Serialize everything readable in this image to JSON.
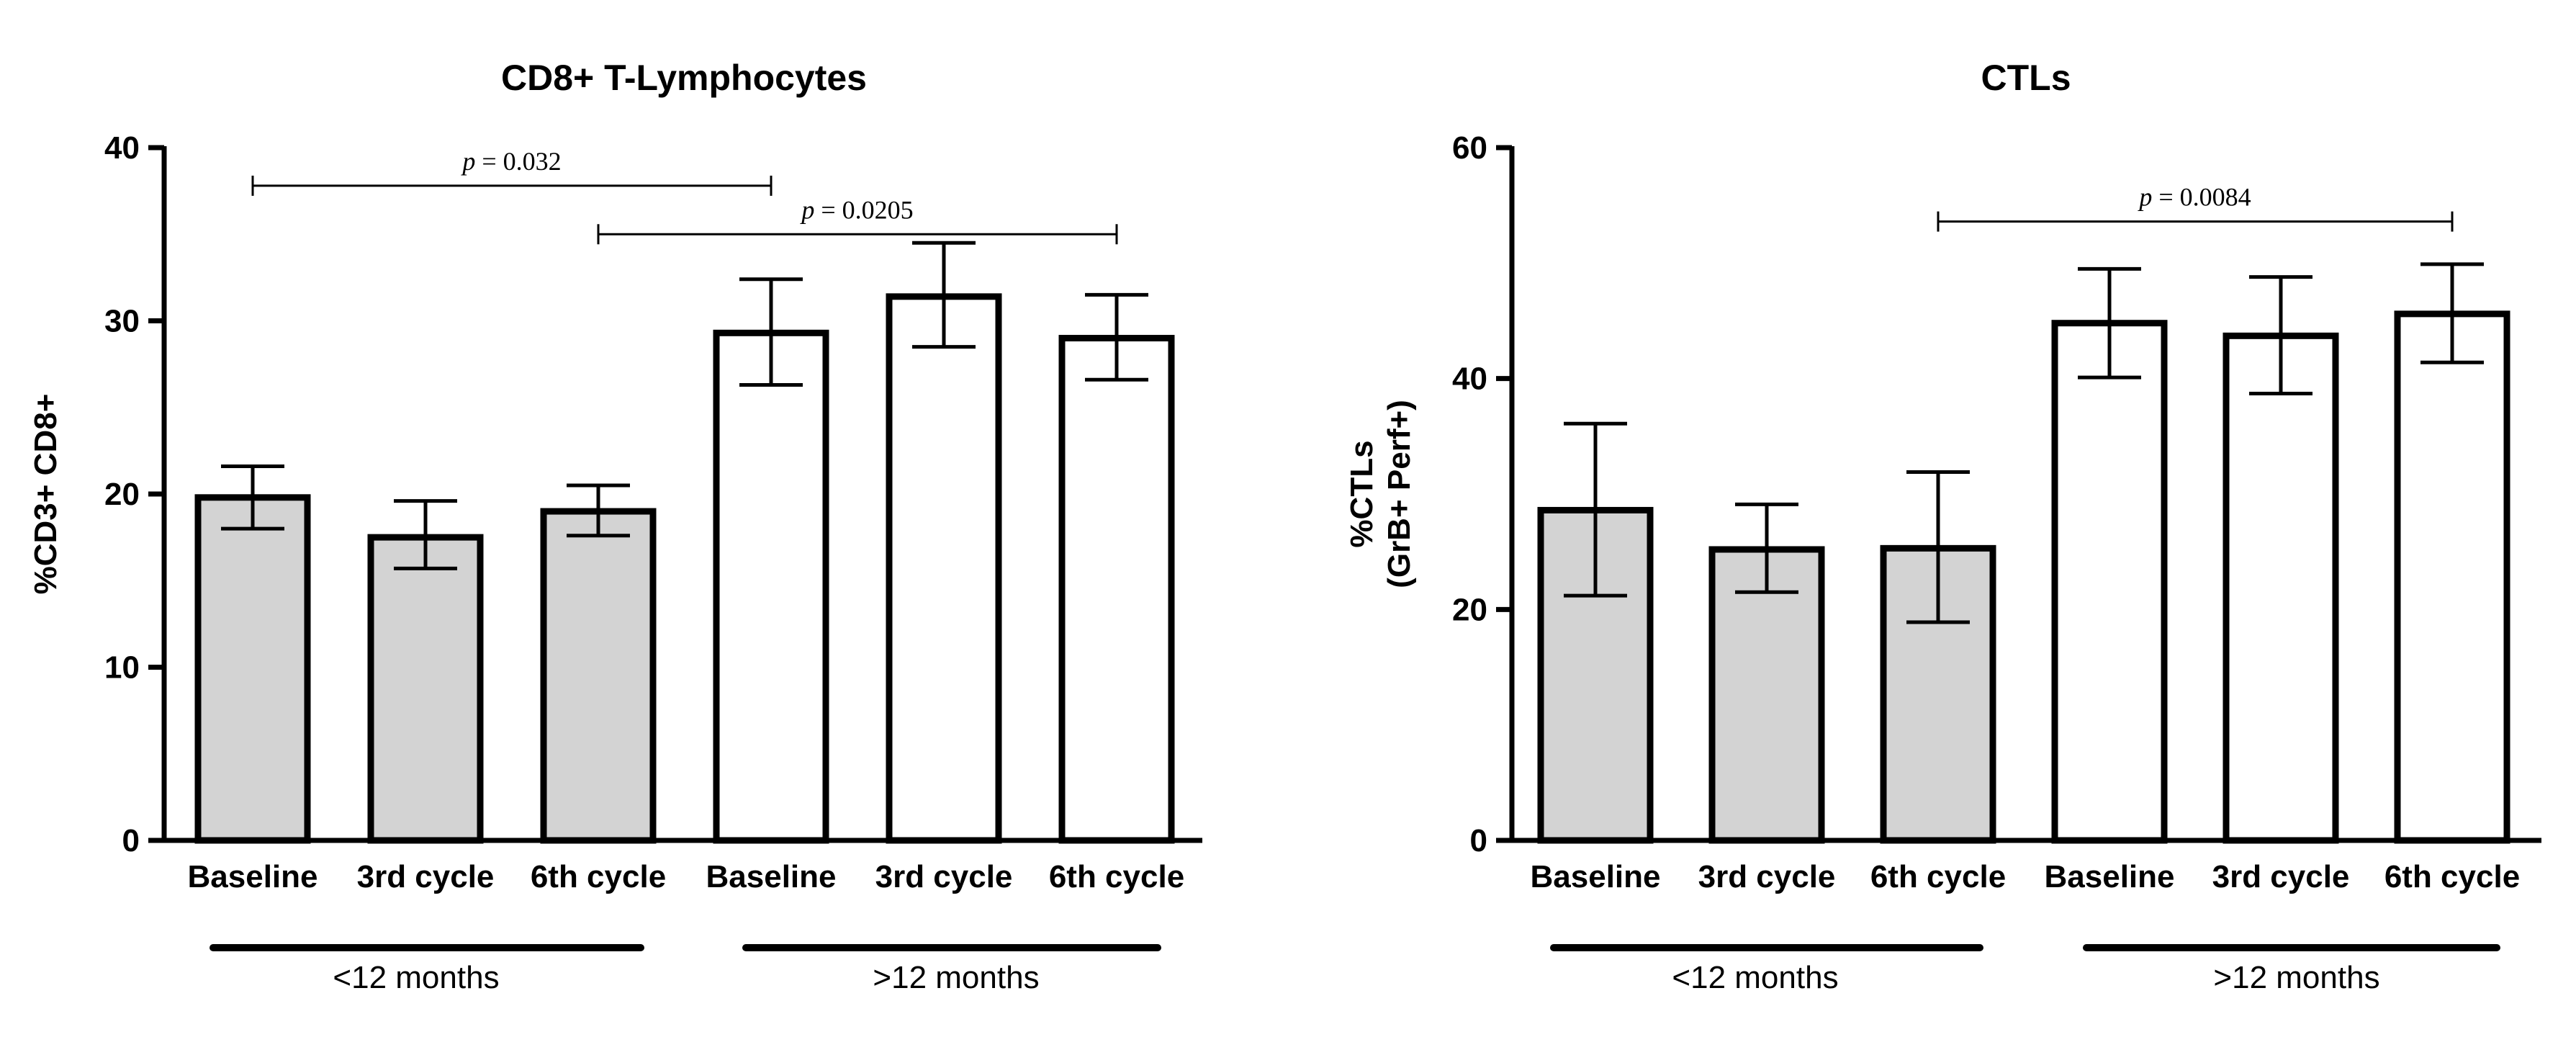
{
  "chart_data": [
    {
      "type": "bar",
      "title": "CD8+ T-Lymphocytes",
      "ylabel": "%CD3+ CD8+",
      "ylabel_lines": [
        "%CD3+ CD8+"
      ],
      "ylim": [
        0,
        40
      ],
      "yticks": [
        0,
        10,
        20,
        30,
        40
      ],
      "categories": [
        "Baseline",
        "3rd cycle",
        "6th cycle",
        "Baseline",
        "3rd cycle",
        "6th cycle"
      ],
      "values": [
        19.8,
        17.5,
        19.0,
        29.3,
        31.4,
        29.0
      ],
      "err_low": [
        18.0,
        15.7,
        17.6,
        26.3,
        28.5,
        26.6
      ],
      "err_high": [
        21.6,
        19.6,
        20.5,
        32.4,
        34.5,
        31.5
      ],
      "fills": [
        "#d3d3d3",
        "#d3d3d3",
        "#d3d3d3",
        "#ffffff",
        "#ffffff",
        "#ffffff"
      ],
      "groups": [
        {
          "label": "<12 months",
          "indices": [
            0,
            1,
            2
          ]
        },
        {
          "label": ">12 months",
          "indices": [
            3,
            4,
            5
          ]
        }
      ],
      "comparisons": [
        {
          "from": 0,
          "to": 3,
          "y": 37.8,
          "p_prefix": "p",
          "p_text": " = 0.032"
        },
        {
          "from": 2,
          "to": 5,
          "y": 35.0,
          "p_prefix": "p",
          "p_text": " = 0.0205"
        }
      ]
    },
    {
      "type": "bar",
      "title": "CTLs",
      "ylabel": "%CTLs (GrB+ Perf+)",
      "ylabel_lines": [
        "%CTLs",
        "(GrB+ Perf+)"
      ],
      "ylim": [
        0,
        60
      ],
      "yticks": [
        0,
        20,
        40,
        60
      ],
      "categories": [
        "Baseline",
        "3rd cycle",
        "6th cycle",
        "Baseline",
        "3rd cycle",
        "6th cycle"
      ],
      "values": [
        28.6,
        25.2,
        25.3,
        44.8,
        43.7,
        45.6
      ],
      "err_low": [
        21.2,
        21.5,
        18.9,
        40.1,
        38.7,
        41.4
      ],
      "err_high": [
        36.1,
        29.1,
        31.9,
        49.5,
        48.8,
        49.9
      ],
      "fills": [
        "#d3d3d3",
        "#d3d3d3",
        "#d3d3d3",
        "#ffffff",
        "#ffffff",
        "#ffffff"
      ],
      "groups": [
        {
          "label": "<12 months",
          "indices": [
            0,
            1,
            2
          ]
        },
        {
          "label": ">12 months",
          "indices": [
            3,
            4,
            5
          ]
        }
      ],
      "comparisons": [
        {
          "from": 2,
          "to": 5,
          "y": 53.6,
          "p_prefix": "p",
          "p_text": " = 0.0084"
        }
      ]
    }
  ]
}
